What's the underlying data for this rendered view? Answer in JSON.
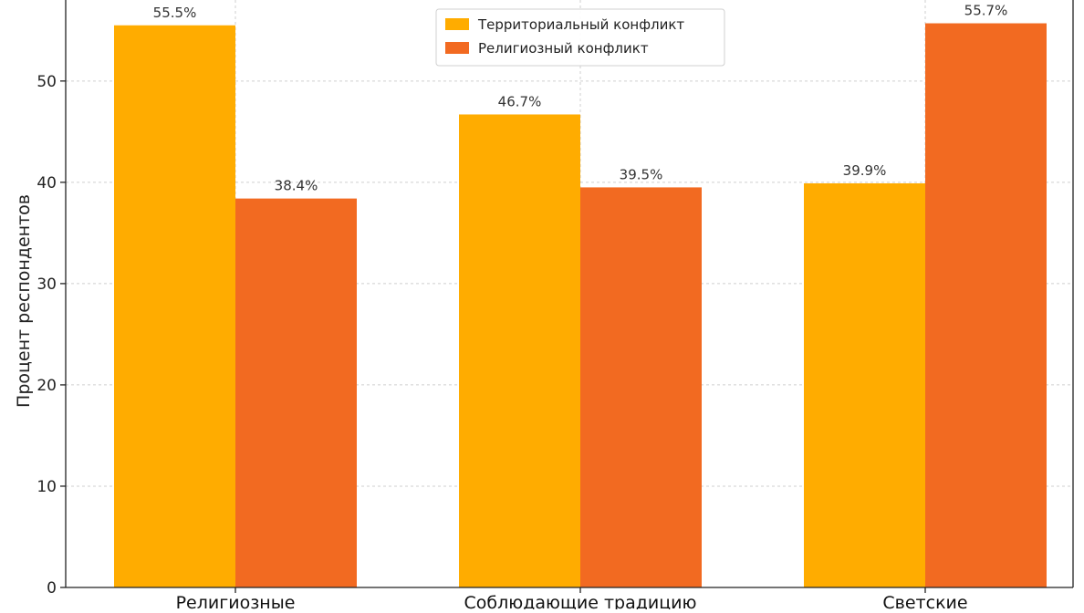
{
  "chart_data": {
    "type": "bar",
    "title": "",
    "xlabel": "",
    "ylabel": "Процент респондентов",
    "categories": [
      "Религиозные",
      "Соблюдающие традицию",
      "Светские"
    ],
    "series": [
      {
        "name": "Территориальный конфликт",
        "color": "#FFAC00",
        "values": [
          55.5,
          46.7,
          39.9
        ],
        "labels": [
          "55.5%",
          "46.7%",
          "39.9%"
        ]
      },
      {
        "name": "Религиозный конфликт",
        "color": "#F26A21",
        "values": [
          38.4,
          39.5,
          55.7
        ],
        "labels": [
          "38.4%",
          "39.5%",
          "55.7%"
        ]
      }
    ],
    "ylim": [
      0,
      58
    ],
    "yticks": [
      0,
      10,
      20,
      30,
      40,
      50
    ],
    "ytick_labels": [
      "0",
      "10",
      "20",
      "30",
      "40",
      "50"
    ],
    "grid": true,
    "legend_position": "top-center"
  }
}
